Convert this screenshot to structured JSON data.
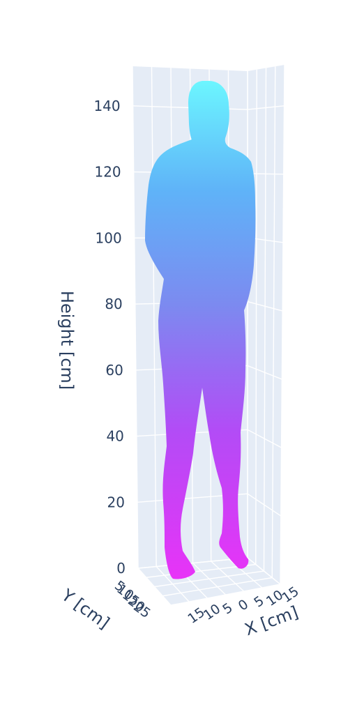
{
  "chart_data": {
    "type": "scatter3d",
    "title": "",
    "z_axis": {
      "label": "Height [cm]",
      "range": [
        0,
        152
      ],
      "ticks": [
        0,
        20,
        40,
        60,
        80,
        100,
        120,
        140
      ]
    },
    "y_axis": {
      "label": "Y [cm]",
      "tick_labels": [
        "5",
        "10",
        "15",
        "20",
        "25"
      ]
    },
    "x_axis": {
      "label": "X [cm]",
      "tick_labels": [
        "15",
        "10",
        "5",
        "0",
        "5",
        "10",
        "15"
      ]
    },
    "colorscale": [
      "#e833f7",
      "#a855f7",
      "#7c8af0",
      "#5fb3f8",
      "#6cf6ff"
    ],
    "description_points": "dense point cloud of a standing human body, colored by height",
    "background_color": "#e5ecf6",
    "grid": true
  }
}
